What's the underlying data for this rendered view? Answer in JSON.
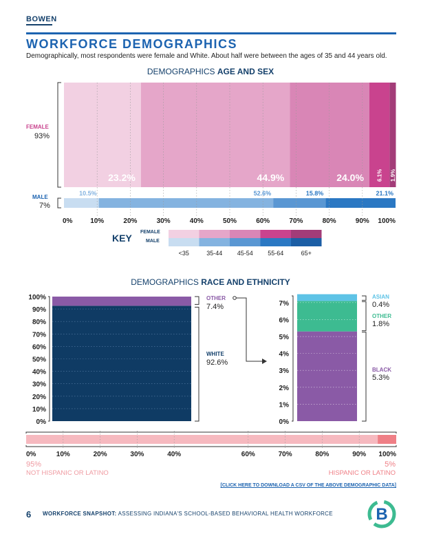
{
  "header": {
    "brand": "BOWEN",
    "title": "WORKFORCE DEMOGRAPHICS",
    "subtitle": "Demographically, most respondents were female and White. About half were between the ages of 35 and 44 years old."
  },
  "age_sex": {
    "title_plain": "DEMOGRAPHICS ",
    "title_bold": "AGE AND SEX",
    "female_label": "FEMALE",
    "female_pct": "93%",
    "male_label": "MALE",
    "male_pct": "7%",
    "key_title": "KEY",
    "key_female": "FEMALE",
    "key_male": "MALE"
  },
  "race": {
    "title_plain": "DEMOGRAPHICS ",
    "title_bold": "RACE AND ETHNICITY",
    "other_label": "OTHER",
    "other_pct": "7.4%",
    "white_label": "WHITE",
    "white_pct": "92.6%",
    "asian_label": "ASIAN",
    "asian_pct": "0.4%",
    "other2_label": "OTHER",
    "other2_pct": "1.8%",
    "black_label": "BLACK",
    "black_pct": "5.3%"
  },
  "hispanic": {
    "not_pct": "95%",
    "not_label": "NOT HISPANIC OR LATINO",
    "yes_pct": "5%",
    "yes_label": "HISPANIC OR LATINO"
  },
  "csv_link": "[CLICK HERE TO DOWNLOAD A CSV OF THE ABOVE DEMOGRAPHIC DATA]",
  "footer": {
    "page": "6",
    "bold": "WORKFORCE SNAPSHOT:",
    "text": " ASSESSING INDIANA'S SCHOOL-BASED BEHAVIORAL HEALTH WORKFORCE"
  },
  "colors": {
    "female": [
      "#f2d0e2",
      "#e5a6c9",
      "#d986b6",
      "#c9438e",
      "#a33c78"
    ],
    "male": [
      "#c8ddf1",
      "#84b3e0",
      "#5a97d3",
      "#2b78c3",
      "#1c5ea5"
    ],
    "white": "#0f3b64",
    "purple": "#8a5aa6",
    "asian": "#5ec3e6",
    "teal": "#3dbb91",
    "not_hispanic": "#f6b9bf",
    "hispanic": "#ef7f86"
  },
  "chart_data": [
    {
      "type": "bar",
      "title": "DEMOGRAPHICS AGE AND SEX",
      "orientation": "horizontal-stacked",
      "categories": [
        "<35",
        "35-44",
        "45-54",
        "55-64",
        "65+"
      ],
      "x_ticks": [
        "0%",
        "10%",
        "20%",
        "30%",
        "40%",
        "50%",
        "60%",
        "70%",
        "80%",
        "90%",
        "100%"
      ],
      "series": [
        {
          "name": "FEMALE",
          "share": 93,
          "values": [
            23.2,
            44.9,
            24.0,
            6.1,
            1.9
          ],
          "labels": [
            "23.2%",
            "44.9%",
            "24.0%",
            "6.1%",
            "1.9%"
          ]
        },
        {
          "name": "MALE",
          "share": 7,
          "values": [
            10.5,
            52.6,
            15.8,
            21.1,
            0
          ],
          "labels": [
            "10.5%",
            "52.6%",
            "15.8%",
            "21.1%",
            ""
          ]
        }
      ],
      "xlim": [
        0,
        100
      ]
    },
    {
      "type": "bar",
      "title": "DEMOGRAPHICS RACE AND ETHNICITY",
      "orientation": "vertical-stacked",
      "main": {
        "y_ticks": [
          "0%",
          "10%",
          "20%",
          "30%",
          "40%",
          "50%",
          "60%",
          "70%",
          "80%",
          "90%",
          "100%"
        ],
        "ylim": [
          0,
          100
        ],
        "segments": [
          {
            "name": "WHITE",
            "value": 92.6
          },
          {
            "name": "OTHER",
            "value": 7.4
          }
        ]
      },
      "zoom": {
        "y_ticks": [
          "0%",
          "1%",
          "2%",
          "3%",
          "4%",
          "5%",
          "6%",
          "7%"
        ],
        "ylim": [
          0,
          7.5
        ],
        "segments": [
          {
            "name": "BLACK",
            "value": 5.3
          },
          {
            "name": "OTHER",
            "value": 1.8
          },
          {
            "name": "ASIAN",
            "value": 0.4
          }
        ]
      }
    },
    {
      "type": "bar",
      "title": "HISPANIC OR LATINO",
      "orientation": "horizontal-stacked",
      "x_ticks": [
        "0%",
        "10%",
        "20%",
        "30%",
        "40%",
        "60%",
        "70%",
        "80%",
        "90%",
        "100%"
      ],
      "x_tick_values": [
        0,
        10,
        20,
        30,
        40,
        60,
        70,
        80,
        90,
        100
      ],
      "segments": [
        {
          "name": "NOT HISPANIC OR LATINO",
          "value": 95
        },
        {
          "name": "HISPANIC OR LATINO",
          "value": 5
        }
      ],
      "xlim": [
        0,
        100
      ]
    }
  ]
}
